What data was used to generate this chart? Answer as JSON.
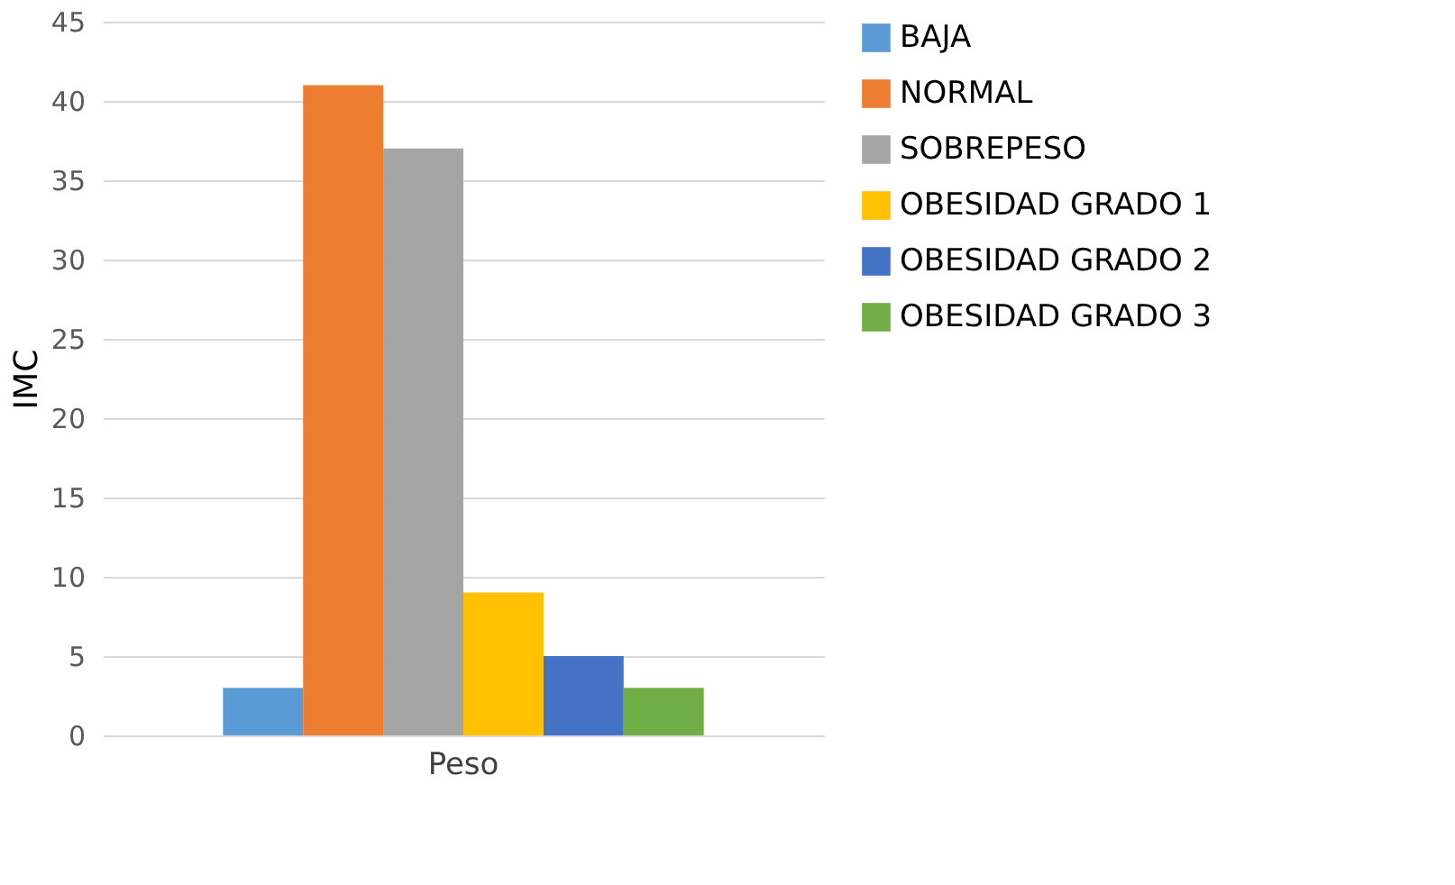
{
  "chart_data": {
    "type": "bar",
    "ylabel": "IMC",
    "categories": [
      "Peso"
    ],
    "series": [
      {
        "name": "BAJA",
        "color": "#5b9bd5",
        "values": [
          3
        ]
      },
      {
        "name": "NORMAL",
        "color": "#ed7d31",
        "values": [
          41
        ]
      },
      {
        "name": "SOBREPESO",
        "color": "#a5a5a5",
        "values": [
          37
        ]
      },
      {
        "name": "OBESIDAD GRADO 1",
        "color": "#ffc000",
        "values": [
          9
        ]
      },
      {
        "name": "OBESIDAD GRADO 2",
        "color": "#4472c4",
        "values": [
          5
        ]
      },
      {
        "name": "OBESIDAD GRADO 3",
        "color": "#70ad47",
        "values": [
          3
        ]
      }
    ],
    "ylim": [
      0,
      45
    ],
    "yticks": [
      0,
      5,
      10,
      15,
      20,
      25,
      30,
      35,
      40,
      45
    ],
    "grid": "y",
    "legend": "right"
  }
}
